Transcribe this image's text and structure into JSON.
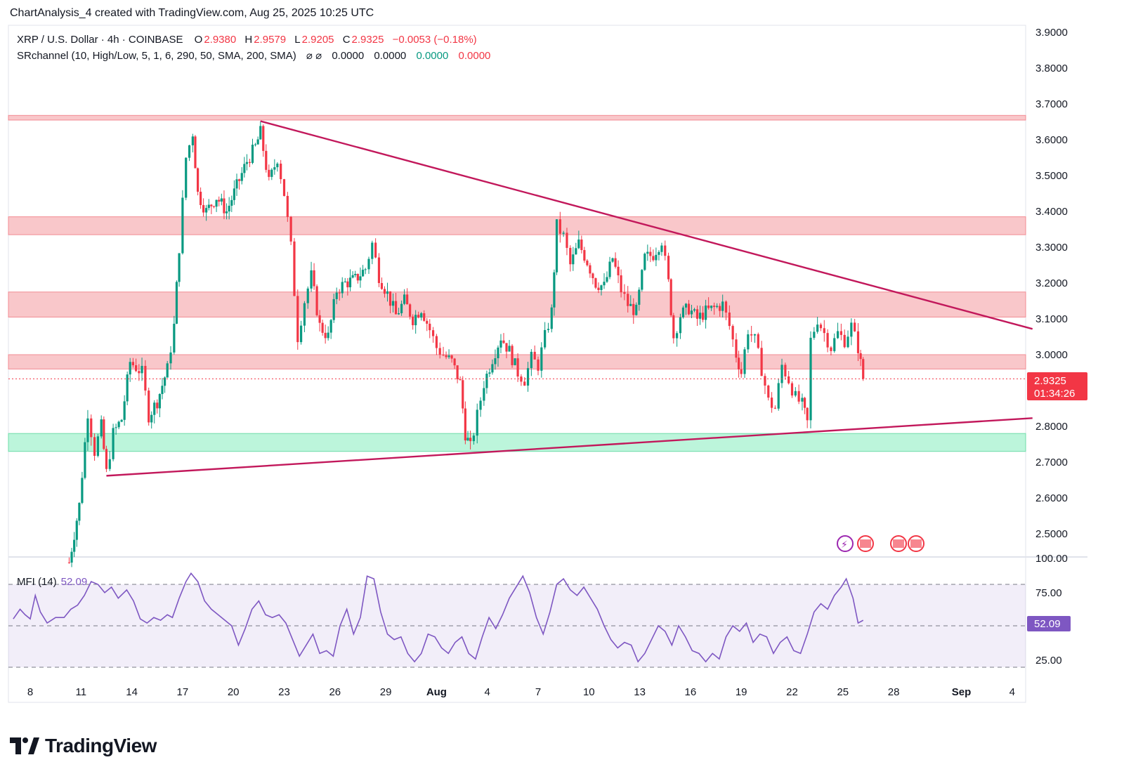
{
  "header": {
    "text": "ChartAnalysis_4 created with TradingView.com, Aug 25, 2025 10:25 UTC"
  },
  "legend": {
    "symbol": "XRP / U.S. Dollar · 4h · COINBASE",
    "o_label": "O",
    "o_value": "2.9380",
    "h_label": "H",
    "h_value": "2.9579",
    "l_label": "L",
    "l_value": "2.9205",
    "c_label": "C",
    "c_value": "2.9325",
    "change": "−0.0053 (−0.18%)",
    "indicator": "SRchannel (10, High/Low, 5, 1, 6, 290, 50, SMA, 200, SMA)",
    "ind_symbols": "⌀ ⌀",
    "ind_v1": "0.0000",
    "ind_v2": "0.0000",
    "ind_v3": "0.0000",
    "ind_v4": "0.0000"
  },
  "mfi": {
    "label": "MFI (14)",
    "value": "52.09",
    "ticks": [
      "100.00",
      "75.00",
      "25.00"
    ],
    "upper": 80,
    "mid": 50,
    "lower": 20
  },
  "price_tag": {
    "price": "2.9325",
    "countdown": "01:34:26"
  },
  "logo": {
    "text": "TradingView"
  },
  "colors": {
    "up": "#089981",
    "down": "#f23645",
    "trend": "#c2185b",
    "resistance": "#f7b4b8",
    "support": "#a6f2cf",
    "mfi": "#7e57c2"
  },
  "chart_data": {
    "type": "candlestick",
    "title": "XRP / U.S. Dollar · 4h · COINBASE",
    "y_ticks": [
      "3.9000",
      "3.8000",
      "3.7000",
      "3.6000",
      "3.5000",
      "3.4000",
      "3.3000",
      "3.2000",
      "3.1000",
      "3.0000",
      "2.8000",
      "2.7000",
      "2.6000",
      "2.5000"
    ],
    "ylim": [
      2.45,
      3.92
    ],
    "x_ticks": [
      "8",
      "11",
      "14",
      "17",
      "20",
      "23",
      "26",
      "29",
      "Aug",
      "4",
      "7",
      "10",
      "13",
      "16",
      "19",
      "22",
      "25",
      "28",
      "Sep",
      "4"
    ],
    "x_tick_days": [
      8,
      11,
      14,
      17,
      20,
      23,
      26,
      29,
      32,
      35,
      38,
      41,
      44,
      47,
      50,
      53,
      56,
      59,
      63,
      66
    ],
    "xlim_days": [
      7,
      67.2
    ],
    "zones": [
      {
        "type": "resistance",
        "from": 3.655,
        "to": 3.668
      },
      {
        "type": "resistance",
        "from": 3.335,
        "to": 3.385
      },
      {
        "type": "resistance",
        "from": 3.105,
        "to": 3.175
      },
      {
        "type": "resistance",
        "from": 2.96,
        "to": 3.0
      },
      {
        "type": "support",
        "from": 2.73,
        "to": 2.78
      }
    ],
    "trendlines": [
      {
        "name": "descending",
        "from": {
          "day": 21.6,
          "price": 3.652
        },
        "to": {
          "day": 67.2,
          "price": 3.072
        }
      },
      {
        "name": "ascending",
        "from": {
          "day": 12.5,
          "price": 2.662
        },
        "to": {
          "day": 67.2,
          "price": 2.823
        }
      }
    ],
    "last_price": 2.9325,
    "price_path": [
      [
        10.3,
        2.42
      ],
      [
        10.9,
        2.58
      ],
      [
        11.4,
        2.84
      ],
      [
        11.8,
        2.73
      ],
      [
        12.2,
        2.8
      ],
      [
        12.5,
        2.67
      ],
      [
        12.9,
        2.78
      ],
      [
        13.4,
        2.82
      ],
      [
        13.9,
        2.98
      ],
      [
        14.6,
        2.95
      ],
      [
        15.0,
        2.83
      ],
      [
        15.5,
        2.87
      ],
      [
        16.1,
        2.96
      ],
      [
        16.5,
        3.08
      ],
      [
        16.8,
        3.3
      ],
      [
        17.2,
        3.55
      ],
      [
        17.6,
        3.62
      ],
      [
        17.9,
        3.45
      ],
      [
        18.4,
        3.4
      ],
      [
        19.0,
        3.44
      ],
      [
        19.6,
        3.4
      ],
      [
        20.2,
        3.47
      ],
      [
        20.8,
        3.54
      ],
      [
        21.3,
        3.58
      ],
      [
        21.6,
        3.62
      ],
      [
        22.1,
        3.48
      ],
      [
        22.6,
        3.55
      ],
      [
        23.0,
        3.45
      ],
      [
        23.4,
        3.3
      ],
      [
        23.8,
        3.05
      ],
      [
        24.2,
        3.15
      ],
      [
        24.6,
        3.22
      ],
      [
        25.1,
        3.08
      ],
      [
        25.6,
        3.05
      ],
      [
        26.1,
        3.18
      ],
      [
        26.6,
        3.2
      ],
      [
        27.2,
        3.21
      ],
      [
        27.8,
        3.24
      ],
      [
        28.2,
        3.31
      ],
      [
        28.6,
        3.22
      ],
      [
        29.1,
        3.17
      ],
      [
        29.6,
        3.11
      ],
      [
        30.1,
        3.15
      ],
      [
        30.6,
        3.1
      ],
      [
        31.1,
        3.13
      ],
      [
        31.6,
        3.07
      ],
      [
        32.0,
        3.02
      ],
      [
        32.4,
        3.0
      ],
      [
        32.9,
        2.98
      ],
      [
        33.4,
        2.92
      ],
      [
        33.7,
        2.78
      ],
      [
        34.0,
        2.74
      ],
      [
        34.4,
        2.83
      ],
      [
        34.8,
        2.92
      ],
      [
        35.3,
        2.99
      ],
      [
        35.8,
        3.05
      ],
      [
        36.3,
        3.01
      ],
      [
        36.8,
        2.95
      ],
      [
        37.2,
        2.93
      ],
      [
        37.6,
        2.99
      ],
      [
        38.0,
        2.97
      ],
      [
        38.4,
        3.05
      ],
      [
        38.8,
        3.12
      ],
      [
        39.1,
        3.36
      ],
      [
        39.5,
        3.33
      ],
      [
        39.9,
        3.25
      ],
      [
        40.4,
        3.31
      ],
      [
        40.9,
        3.26
      ],
      [
        41.4,
        3.2
      ],
      [
        41.9,
        3.19
      ],
      [
        42.4,
        3.27
      ],
      [
        42.9,
        3.18
      ],
      [
        43.3,
        3.14
      ],
      [
        43.8,
        3.12
      ],
      [
        44.3,
        3.27
      ],
      [
        44.8,
        3.28
      ],
      [
        45.3,
        3.32
      ],
      [
        45.7,
        3.2
      ],
      [
        46.0,
        3.05
      ],
      [
        46.4,
        3.11
      ],
      [
        46.9,
        3.13
      ],
      [
        47.4,
        3.1
      ],
      [
        47.9,
        3.12
      ],
      [
        48.4,
        3.13
      ],
      [
        48.9,
        3.14
      ],
      [
        49.3,
        3.08
      ],
      [
        49.7,
        3.0
      ],
      [
        50.0,
        2.95
      ],
      [
        50.4,
        3.07
      ],
      [
        50.8,
        3.04
      ],
      [
        51.2,
        2.96
      ],
      [
        51.6,
        2.87
      ],
      [
        52.0,
        2.85
      ],
      [
        52.4,
        2.97
      ],
      [
        52.8,
        2.93
      ],
      [
        53.2,
        2.88
      ],
      [
        53.6,
        2.86
      ],
      [
        53.9,
        2.81
      ],
      [
        54.1,
        3.04
      ],
      [
        54.5,
        3.1
      ],
      [
        54.9,
        3.06
      ],
      [
        55.3,
        3.02
      ],
      [
        55.7,
        3.06
      ],
      [
        56.1,
        3.04
      ],
      [
        56.5,
        3.08
      ],
      [
        56.9,
        3.02
      ],
      [
        57.2,
        2.93
      ]
    ],
    "mfi_path": [
      [
        7.0,
        55
      ],
      [
        7.4,
        62
      ],
      [
        7.7,
        58
      ],
      [
        8.0,
        55
      ],
      [
        8.3,
        72
      ],
      [
        8.6,
        60
      ],
      [
        9.0,
        52
      ],
      [
        9.5,
        56
      ],
      [
        10.0,
        56
      ],
      [
        10.4,
        62
      ],
      [
        10.8,
        65
      ],
      [
        11.2,
        72
      ],
      [
        11.6,
        82
      ],
      [
        12.0,
        80
      ],
      [
        12.4,
        74
      ],
      [
        12.8,
        78
      ],
      [
        13.2,
        70
      ],
      [
        13.7,
        76
      ],
      [
        14.1,
        68
      ],
      [
        14.5,
        55
      ],
      [
        14.9,
        52
      ],
      [
        15.3,
        56
      ],
      [
        15.7,
        54
      ],
      [
        16.1,
        58
      ],
      [
        16.4,
        56
      ],
      [
        16.8,
        70
      ],
      [
        17.2,
        82
      ],
      [
        17.5,
        88
      ],
      [
        17.9,
        82
      ],
      [
        18.3,
        68
      ],
      [
        18.7,
        62
      ],
      [
        19.1,
        58
      ],
      [
        19.5,
        54
      ],
      [
        19.9,
        50
      ],
      [
        20.3,
        36
      ],
      [
        20.7,
        48
      ],
      [
        21.1,
        62
      ],
      [
        21.5,
        68
      ],
      [
        21.9,
        58
      ],
      [
        22.3,
        56
      ],
      [
        22.7,
        58
      ],
      [
        23.1,
        52
      ],
      [
        23.5,
        40
      ],
      [
        23.9,
        28
      ],
      [
        24.3,
        36
      ],
      [
        24.7,
        44
      ],
      [
        25.1,
        30
      ],
      [
        25.5,
        32
      ],
      [
        25.9,
        28
      ],
      [
        26.3,
        50
      ],
      [
        26.7,
        62
      ],
      [
        27.1,
        44
      ],
      [
        27.5,
        56
      ],
      [
        27.9,
        86
      ],
      [
        28.3,
        84
      ],
      [
        28.7,
        60
      ],
      [
        29.1,
        44
      ],
      [
        29.5,
        40
      ],
      [
        29.9,
        42
      ],
      [
        30.3,
        30
      ],
      [
        30.7,
        24
      ],
      [
        31.1,
        30
      ],
      [
        31.5,
        44
      ],
      [
        31.9,
        42
      ],
      [
        32.3,
        34
      ],
      [
        32.7,
        30
      ],
      [
        33.1,
        38
      ],
      [
        33.5,
        42
      ],
      [
        33.9,
        30
      ],
      [
        34.3,
        26
      ],
      [
        34.7,
        42
      ],
      [
        35.1,
        56
      ],
      [
        35.5,
        48
      ],
      [
        35.9,
        58
      ],
      [
        36.3,
        70
      ],
      [
        36.7,
        78
      ],
      [
        37.1,
        86
      ],
      [
        37.5,
        74
      ],
      [
        37.9,
        56
      ],
      [
        38.3,
        44
      ],
      [
        38.7,
        60
      ],
      [
        39.1,
        80
      ],
      [
        39.5,
        84
      ],
      [
        39.9,
        76
      ],
      [
        40.3,
        72
      ],
      [
        40.7,
        78
      ],
      [
        41.1,
        70
      ],
      [
        41.5,
        62
      ],
      [
        41.9,
        50
      ],
      [
        42.3,
        40
      ],
      [
        42.7,
        34
      ],
      [
        43.1,
        38
      ],
      [
        43.5,
        36
      ],
      [
        43.9,
        24
      ],
      [
        44.3,
        30
      ],
      [
        44.7,
        40
      ],
      [
        45.1,
        50
      ],
      [
        45.5,
        46
      ],
      [
        45.9,
        36
      ],
      [
        46.3,
        50
      ],
      [
        46.7,
        42
      ],
      [
        47.1,
        32
      ],
      [
        47.5,
        30
      ],
      [
        47.9,
        24
      ],
      [
        48.3,
        30
      ],
      [
        48.7,
        26
      ],
      [
        49.1,
        42
      ],
      [
        49.5,
        50
      ],
      [
        49.9,
        46
      ],
      [
        50.3,
        52
      ],
      [
        50.7,
        38
      ],
      [
        51.1,
        44
      ],
      [
        51.5,
        42
      ],
      [
        51.9,
        30
      ],
      [
        52.3,
        38
      ],
      [
        52.7,
        42
      ],
      [
        53.1,
        32
      ],
      [
        53.5,
        30
      ],
      [
        53.9,
        44
      ],
      [
        54.3,
        60
      ],
      [
        54.7,
        66
      ],
      [
        55.1,
        62
      ],
      [
        55.5,
        72
      ],
      [
        55.9,
        78
      ],
      [
        56.2,
        84
      ],
      [
        56.6,
        70
      ],
      [
        56.9,
        52
      ],
      [
        57.2,
        54
      ]
    ]
  }
}
